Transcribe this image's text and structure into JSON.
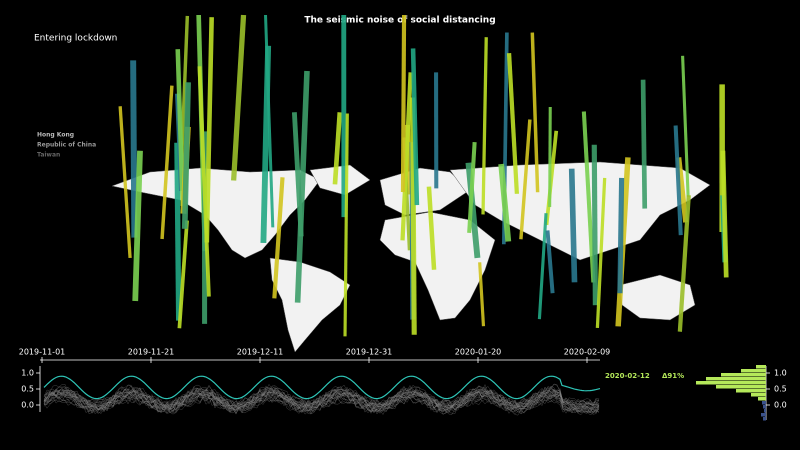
{
  "title": "The seismic noise of social distancing",
  "subtitle": "Entering lockdown",
  "highlighted_regions": [
    "Hong Kong",
    "Republic of China",
    "Taiwan"
  ],
  "timeline": {
    "x_labels": [
      "2019-11-01",
      "2019-11-21",
      "2019-12-11",
      "2019-12-31",
      "2020-01-20",
      "2020-02-09"
    ],
    "yticks": [
      {
        "value": 1,
        "label": "1.0"
      },
      {
        "value": 0.5,
        "label": "0.5"
      },
      {
        "value": 0,
        "label": "0.0"
      }
    ],
    "current_date": "2020-02-12",
    "change": "Δ91%"
  },
  "histogram": {
    "yticks": [
      {
        "value": 1,
        "label": "1.0"
      },
      {
        "value": 0.5,
        "label": "0.5"
      },
      {
        "value": 0,
        "label": "0.0"
      }
    ]
  }
}
